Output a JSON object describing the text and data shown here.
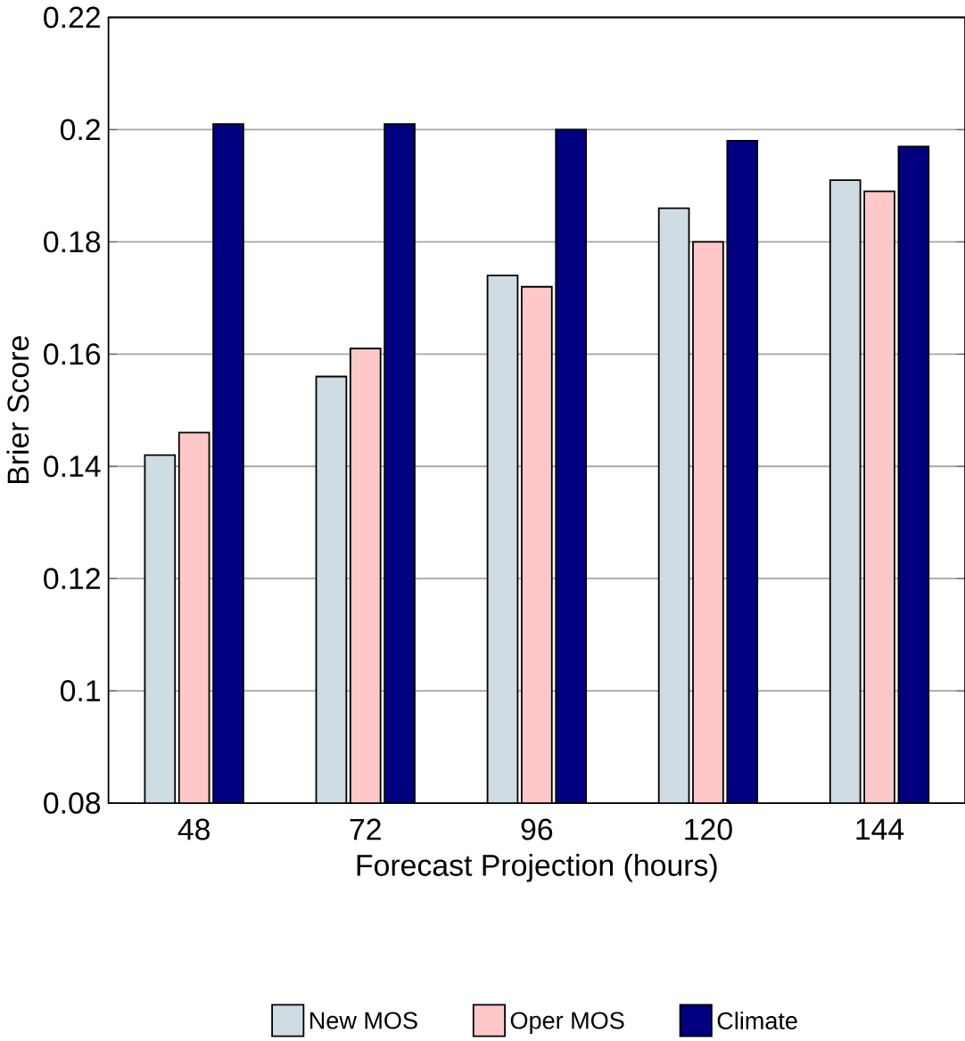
{
  "chart_data": {
    "type": "bar",
    "xlabel": "Forecast Projection (hours)",
    "ylabel": "Brier Score",
    "categories": [
      "48",
      "72",
      "96",
      "120",
      "144"
    ],
    "series": [
      {
        "name": "New MOS",
        "color": "#cfdce3",
        "values": [
          0.142,
          0.156,
          0.174,
          0.186,
          0.191
        ]
      },
      {
        "name": "Oper MOS",
        "color": "#ffc8c8",
        "values": [
          0.146,
          0.161,
          0.172,
          0.18,
          0.189
        ]
      },
      {
        "name": "Climate",
        "color": "#000080",
        "values": [
          0.201,
          0.201,
          0.2,
          0.198,
          0.197
        ]
      }
    ],
    "ylim": [
      0.08,
      0.22
    ],
    "yticks": [
      0.08,
      0.1,
      0.12,
      0.14,
      0.16,
      0.18,
      0.2,
      0.22
    ],
    "grid": "y",
    "legend": "bottom"
  }
}
